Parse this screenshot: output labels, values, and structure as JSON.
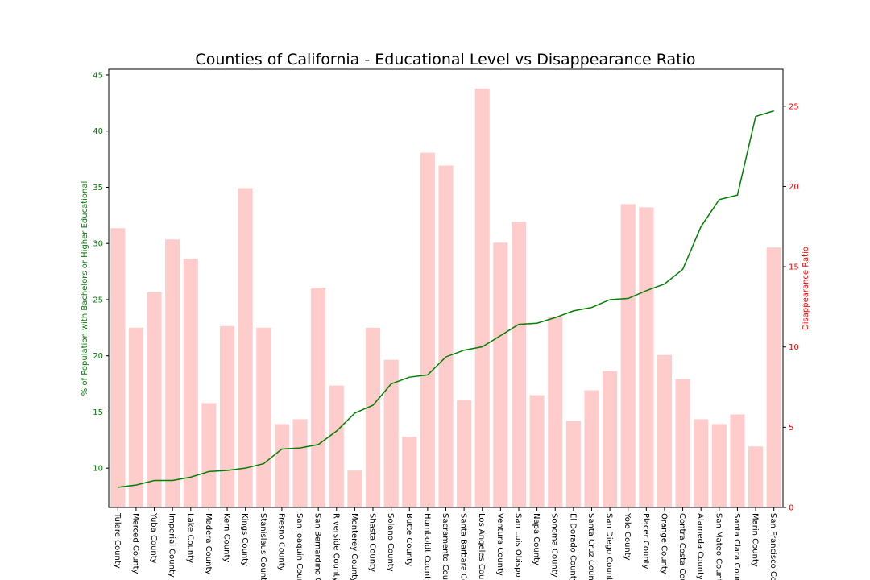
{
  "chart_data": {
    "type": "bar+line",
    "title": "Counties of California - Educational Level vs Disappearance Ratio",
    "ylabel_left": "% of Population with Bachelors or Higher Educational",
    "ylabel_right": "Disappearance Ratio",
    "ylim_left": [
      6.5,
      45.5
    ],
    "ylim_right": [
      0,
      27.3
    ],
    "yticks_left": [
      10,
      15,
      20,
      25,
      30,
      35,
      40,
      45
    ],
    "yticks_right": [
      0,
      5,
      10,
      15,
      20,
      25
    ],
    "left_axis_color": "#008000",
    "right_axis_color": "#ff0000",
    "bar_color": "#ffcccc",
    "line_color": "#008000",
    "categories": [
      "Tulare County",
      "Merced County",
      "Yuba County",
      "Imperial County",
      "Lake County",
      "Madera County",
      "Kern County",
      "Kings County",
      "Stanislaus County",
      "Fresno County",
      "San Joaquin County",
      "San Bernardino County",
      "Riverside County",
      "Monterey County",
      "Shasta County",
      "Solano County",
      "Butte County",
      "Humboldt County",
      "Sacramento County",
      "Santa Barbara County",
      "Los Angeles County",
      "Ventura County",
      "San Luis Obispo County",
      "Napa County",
      "Sonoma County",
      "El Dorado County",
      "Santa Cruz County",
      "San Diego County",
      "Yolo County",
      "Placer County",
      "Orange County",
      "Contra Costa County",
      "Alameda County",
      "San Mateo County",
      "Santa Clara County",
      "Marin County",
      "San Francisco County"
    ],
    "series": [
      {
        "name": "Disappearance Ratio",
        "axis": "right",
        "kind": "bar",
        "values": [
          17.4,
          11.2,
          13.4,
          16.7,
          15.5,
          6.5,
          11.3,
          19.9,
          11.2,
          5.2,
          5.5,
          13.7,
          7.6,
          2.3,
          11.2,
          9.2,
          4.4,
          22.1,
          21.3,
          6.7,
          26.1,
          16.5,
          17.8,
          7.0,
          11.9,
          5.4,
          7.3,
          8.5,
          18.9,
          18.7,
          9.5,
          8.0,
          5.5,
          5.2,
          5.8,
          3.8,
          16.2
        ]
      },
      {
        "name": "% of Population with Bachelors or Higher Educational",
        "axis": "left",
        "kind": "line",
        "values": [
          8.3,
          8.5,
          8.9,
          8.9,
          9.2,
          9.7,
          9.8,
          10.0,
          10.4,
          11.7,
          11.8,
          12.1,
          13.3,
          14.9,
          15.6,
          17.5,
          18.1,
          18.3,
          19.9,
          20.5,
          20.8,
          21.8,
          22.8,
          22.9,
          23.4,
          24.0,
          24.3,
          25.0,
          25.1,
          25.8,
          26.4,
          27.7,
          31.5,
          33.9,
          34.3,
          41.3,
          41.8
        ]
      }
    ]
  }
}
